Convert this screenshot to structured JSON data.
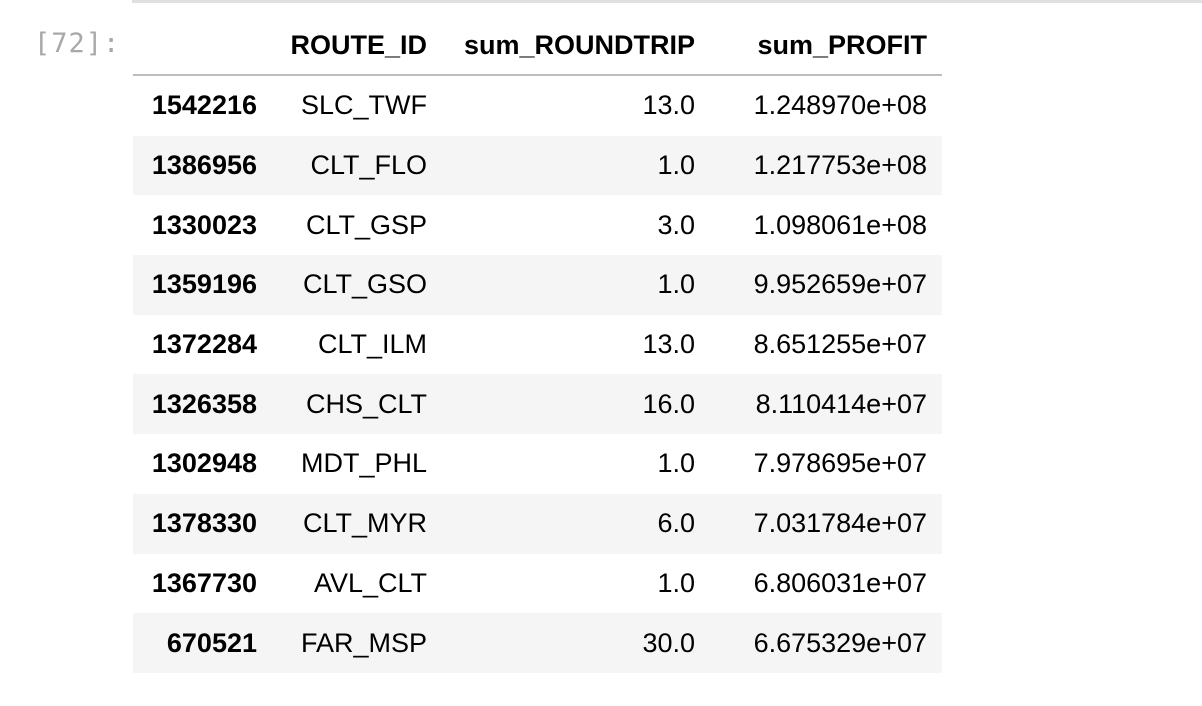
{
  "cell": {
    "prompt": "[72]:"
  },
  "table": {
    "columns": [
      "",
      "ROUTE_ID",
      "sum_ROUNDTRIP",
      "sum_PROFIT"
    ],
    "rows": [
      {
        "index": "1542216",
        "route_id": "SLC_TWF",
        "sum_roundtrip": "13.0",
        "sum_profit": "1.248970e+08"
      },
      {
        "index": "1386956",
        "route_id": "CLT_FLO",
        "sum_roundtrip": "1.0",
        "sum_profit": "1.217753e+08"
      },
      {
        "index": "1330023",
        "route_id": "CLT_GSP",
        "sum_roundtrip": "3.0",
        "sum_profit": "1.098061e+08"
      },
      {
        "index": "1359196",
        "route_id": "CLT_GSO",
        "sum_roundtrip": "1.0",
        "sum_profit": "9.952659e+07"
      },
      {
        "index": "1372284",
        "route_id": "CLT_ILM",
        "sum_roundtrip": "13.0",
        "sum_profit": "8.651255e+07"
      },
      {
        "index": "1326358",
        "route_id": "CHS_CLT",
        "sum_roundtrip": "16.0",
        "sum_profit": "8.110414e+07"
      },
      {
        "index": "1302948",
        "route_id": "MDT_PHL",
        "sum_roundtrip": "1.0",
        "sum_profit": "7.978695e+07"
      },
      {
        "index": "1378330",
        "route_id": "CLT_MYR",
        "sum_roundtrip": "6.0",
        "sum_profit": "7.031784e+07"
      },
      {
        "index": "1367730",
        "route_id": "AVL_CLT",
        "sum_roundtrip": "1.0",
        "sum_profit": "6.806031e+07"
      },
      {
        "index": "670521",
        "route_id": "FAR_MSP",
        "sum_roundtrip": "30.0",
        "sum_profit": "6.675329e+07"
      }
    ]
  }
}
